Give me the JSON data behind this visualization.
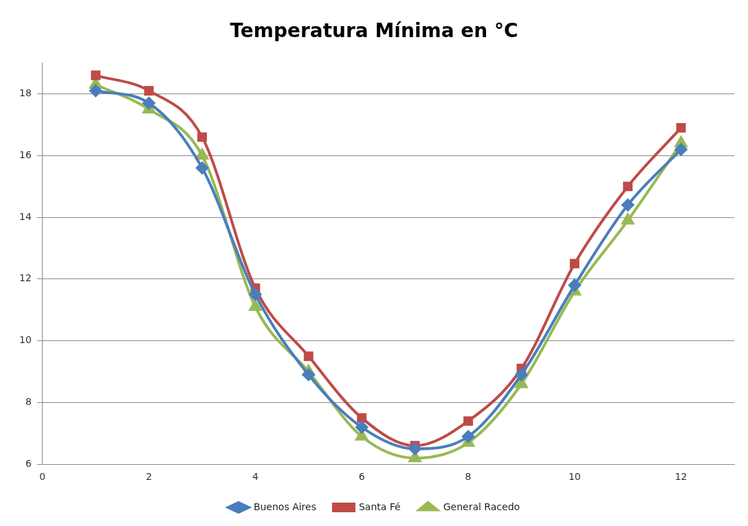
{
  "chart_data": {
    "type": "line",
    "title": "Temperatura Mínima en °C",
    "x": [
      1,
      2,
      3,
      4,
      5,
      6,
      7,
      8,
      9,
      10,
      11,
      12
    ],
    "series": [
      {
        "name": "Buenos Aires",
        "color": "#4a7ebb",
        "marker": "diamond",
        "values": [
          18.1,
          17.7,
          15.6,
          11.5,
          8.9,
          7.2,
          6.5,
          6.9,
          8.9,
          11.8,
          14.4,
          16.2
        ]
      },
      {
        "name": "Santa Fé",
        "color": "#be4b48",
        "marker": "square",
        "values": [
          18.6,
          18.1,
          16.6,
          11.7,
          9.5,
          7.5,
          6.6,
          7.4,
          9.1,
          12.5,
          15.0,
          16.9
        ]
      },
      {
        "name": "General Racedo",
        "color": "#98b954",
        "marker": "triangle",
        "values": [
          18.3,
          17.5,
          16.0,
          11.1,
          9.0,
          6.9,
          6.2,
          6.7,
          8.6,
          11.6,
          13.9,
          16.4
        ]
      }
    ],
    "xlim": [
      0,
      13
    ],
    "xticks": [
      0,
      2,
      4,
      6,
      8,
      10,
      12
    ],
    "ylim": [
      6,
      19
    ],
    "yticks": [
      6,
      8,
      10,
      12,
      14,
      16,
      18
    ],
    "grid": "y",
    "legend": "bottom",
    "line_style": "solid"
  }
}
